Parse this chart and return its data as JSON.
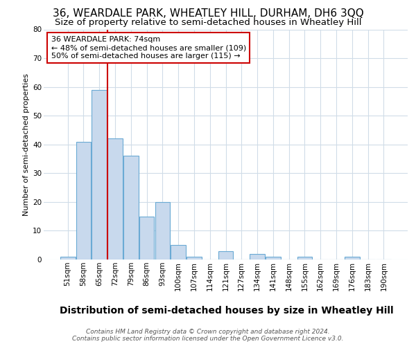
{
  "title1": "36, WEARDALE PARK, WHEATLEY HILL, DURHAM, DH6 3QQ",
  "title2": "Size of property relative to semi-detached houses in Wheatley Hill",
  "xlabel": "Distribution of semi-detached houses by size in Wheatley Hill",
  "ylabel": "Number of semi-detached properties",
  "categories": [
    "51sqm",
    "58sqm",
    "65sqm",
    "72sqm",
    "79sqm",
    "86sqm",
    "93sqm",
    "100sqm",
    "107sqm",
    "114sqm",
    "121sqm",
    "127sqm",
    "134sqm",
    "141sqm",
    "148sqm",
    "155sqm",
    "162sqm",
    "169sqm",
    "176sqm",
    "183sqm",
    "190sqm"
  ],
  "values": [
    1,
    41,
    59,
    42,
    36,
    15,
    20,
    5,
    1,
    0,
    3,
    0,
    2,
    1,
    0,
    1,
    0,
    0,
    1,
    0,
    0
  ],
  "bar_color": "#c8d9ed",
  "bar_edge_color": "#6aaad4",
  "vline_x_index": 3,
  "vline_color": "#cc0000",
  "annotation_line1": "36 WEARDALE PARK: 74sqm",
  "annotation_line2": "← 48% of semi-detached houses are smaller (109)",
  "annotation_line3": "50% of semi-detached houses are larger (115) →",
  "annotation_box_color": "white",
  "annotation_box_edge": "#cc0000",
  "ylim_max": 80,
  "yticks": [
    0,
    10,
    20,
    30,
    40,
    50,
    60,
    70,
    80
  ],
  "footer": "Contains HM Land Registry data © Crown copyright and database right 2024.\nContains public sector information licensed under the Open Government Licence v3.0.",
  "bg_color": "#ffffff",
  "plot_bg_color": "#ffffff",
  "grid_color": "#d0dce8",
  "title1_fontsize": 11,
  "title2_fontsize": 9.5,
  "xlabel_fontsize": 10,
  "ylabel_fontsize": 8,
  "tick_fontsize": 7.5,
  "footer_fontsize": 6.5,
  "annotation_fontsize": 8
}
